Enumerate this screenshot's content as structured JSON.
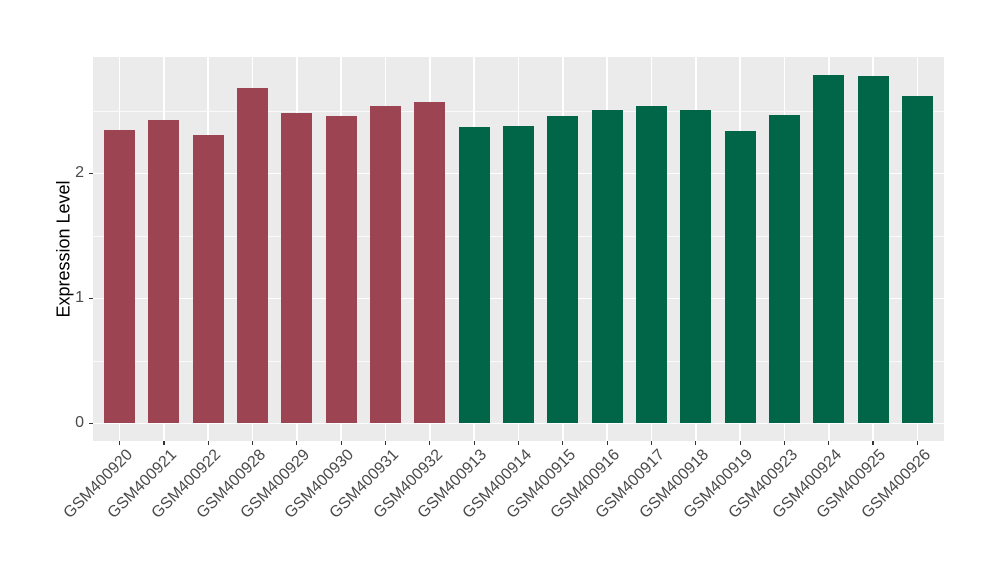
{
  "chart_data": {
    "type": "bar",
    "title": "",
    "xlabel": "",
    "ylabel": "Expression Level",
    "ylim": [
      0,
      2.93
    ],
    "yticks": [
      0,
      1,
      2
    ],
    "ytick_labels": [
      "0",
      "1",
      "2"
    ],
    "minor_gridlines": [
      0.5,
      1.5,
      2.5
    ],
    "grid": true,
    "legend": "none",
    "panel_background": "#EBEBEB",
    "gridline_color": "#FFFFFF",
    "tick_color": "#333333",
    "tick_label_color": "#4a4a4a",
    "axis_title_color": "#000000",
    "group_colors": {
      "maroon": "#9C4452",
      "green": "#016648"
    },
    "categories": [
      "GSM400920",
      "GSM400921",
      "GSM400922",
      "GSM400928",
      "GSM400929",
      "GSM400930",
      "GSM400931",
      "GSM400932",
      "GSM400913",
      "GSM400914",
      "GSM400915",
      "GSM400916",
      "GSM400917",
      "GSM400918",
      "GSM400919",
      "GSM400923",
      "GSM400924",
      "GSM400925",
      "GSM400926"
    ],
    "values": [
      2.35,
      2.43,
      2.31,
      2.68,
      2.48,
      2.46,
      2.54,
      2.57,
      2.37,
      2.38,
      2.46,
      2.51,
      2.54,
      2.51,
      2.34,
      2.47,
      2.79,
      2.78,
      2.62
    ],
    "bar_groups": [
      "maroon",
      "maroon",
      "maroon",
      "maroon",
      "maroon",
      "maroon",
      "maroon",
      "maroon",
      "green",
      "green",
      "green",
      "green",
      "green",
      "green",
      "green",
      "green",
      "green",
      "green",
      "green"
    ]
  }
}
